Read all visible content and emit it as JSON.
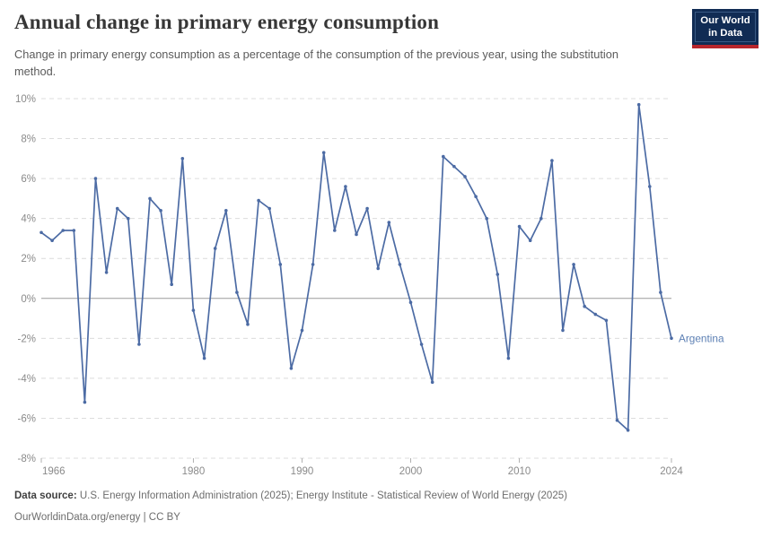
{
  "header": {
    "title": "Annual change in primary energy consumption",
    "subtitle": "Change in primary energy consumption as a percentage of the consumption of the previous year, using the substitution method.",
    "logo": {
      "line1": "Our World",
      "line2": "in Data"
    }
  },
  "chart_data": {
    "type": "line",
    "title": "Annual change in primary energy consumption",
    "xlabel": "",
    "ylabel": "",
    "ylim": [
      -8,
      10
    ],
    "grid": "horizontal-dashed",
    "zero_line": true,
    "legend_position": "end-of-line-label",
    "yticks_values": [
      10,
      8,
      6,
      4,
      2,
      0,
      -2,
      -4,
      -6,
      -8
    ],
    "yticks_labels": [
      "10%",
      "8%",
      "6%",
      "4%",
      "2%",
      "0%",
      "-2%",
      "-4%",
      "-6%",
      "-8%"
    ],
    "xticks_values": [
      1966,
      1980,
      1990,
      2000,
      2010,
      2024
    ],
    "xticks_labels": [
      "1966",
      "1980",
      "1990",
      "2000",
      "2010",
      "2024"
    ],
    "series": [
      {
        "name": "Argentina",
        "x": [
          1966,
          1967,
          1968,
          1969,
          1970,
          1971,
          1972,
          1973,
          1974,
          1975,
          1976,
          1977,
          1978,
          1979,
          1980,
          1981,
          1982,
          1983,
          1984,
          1985,
          1986,
          1987,
          1988,
          1989,
          1990,
          1991,
          1992,
          1993,
          1994,
          1995,
          1996,
          1997,
          1998,
          1999,
          2000,
          2001,
          2002,
          2003,
          2004,
          2005,
          2006,
          2007,
          2008,
          2009,
          2010,
          2011,
          2012,
          2013,
          2014,
          2015,
          2016,
          2017,
          2018,
          2019,
          2020,
          2021,
          2022,
          2023,
          2024
        ],
        "values": [
          3.3,
          2.9,
          3.4,
          3.4,
          -5.2,
          6.0,
          1.3,
          4.5,
          4.0,
          -2.3,
          5.0,
          4.4,
          0.7,
          7.0,
          -0.6,
          -3.0,
          2.5,
          4.4,
          0.3,
          -1.3,
          4.9,
          4.5,
          1.7,
          -3.5,
          -1.6,
          1.7,
          7.3,
          3.4,
          5.6,
          3.2,
          4.5,
          1.5,
          3.8,
          1.7,
          -0.2,
          -2.3,
          -4.2,
          7.1,
          6.6,
          6.1,
          5.1,
          4.0,
          1.2,
          -3.0,
          3.6,
          2.9,
          4.0,
          6.9,
          -1.6,
          1.7,
          -0.4,
          -0.8,
          -1.1,
          -6.1,
          -6.6,
          9.7,
          5.6,
          0.3,
          -2.0
        ]
      }
    ],
    "end_label": "Argentina",
    "colors": {
      "line": "#4c6ba4",
      "end_label": "#5d80b4",
      "grid": "#dcdcdc",
      "zero_line": "#9c9c9c",
      "axis_text": "#8a8a8a",
      "tick_mark": "#b0b0b0"
    }
  },
  "footer": {
    "datasource_label": "Data source:",
    "datasource_text": " U.S. Energy Information Administration (2025); Energy Institute - Statistical Review of World Energy (2025)",
    "license_line": "OurWorldinData.org/energy | CC BY"
  }
}
